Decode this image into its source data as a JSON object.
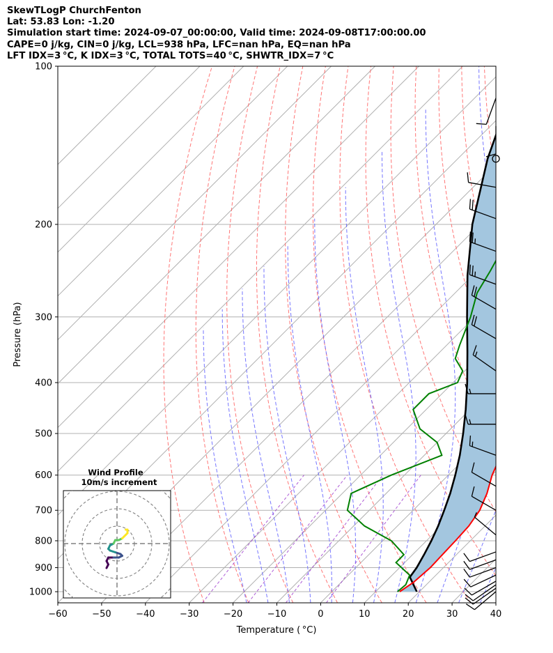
{
  "header": {
    "line1": "SkewTLogP ChurchFenton",
    "line2": "Lat: 53.83   Lon: -1.20",
    "line3": "Simulation start time: 2024-09-07_00:00:00, Valid time: 2024-09-08T17:00:00.00",
    "line4": "CAPE=0 j/kg, CIN=0 j/kg, LCL=938 hPa, LFC=nan hPa, EQ=nan hPa",
    "line5": "LFT IDX=3 °C, K IDX=3 °C, TOTAL TOTS=40 °C, SHWTR_IDX=7 °C"
  },
  "chart_data": {
    "type": "line",
    "subtype": "skew-t log-p",
    "xlabel": "Temperature ( °C)",
    "ylabel": "Pressure (hPa)",
    "xlim": [
      -60,
      40
    ],
    "ylim": [
      1050,
      100
    ],
    "yscale": "log",
    "x_ticks": [
      "−60",
      "−50",
      "−40",
      "−30",
      "−20",
      "−10",
      "0",
      "10",
      "20",
      "30",
      "40"
    ],
    "y_ticks": [
      "100",
      "200",
      "300",
      "400",
      "500",
      "600",
      "700",
      "800",
      "900",
      "1000"
    ],
    "grid": true,
    "colors": {
      "temperature": "#ff0000",
      "dewpoint": "#008000",
      "parcel": "#000000",
      "shade": "#a3c6df",
      "dry_adiabat": "#ff6666",
      "moist_adiabat": "#6666ff",
      "mixing_ratio": "#9932cc",
      "isotherm": "#b0b0b0"
    },
    "series": [
      {
        "key": "temperature",
        "points": [
          [
            1000,
            15.5
          ],
          [
            960,
            16.5
          ],
          [
            900,
            17.0
          ],
          [
            850,
            16.8
          ],
          [
            800,
            16.6
          ],
          [
            750,
            16.3
          ],
          [
            700,
            15.2
          ],
          [
            650,
            13.0
          ],
          [
            600,
            10.0
          ],
          [
            550,
            7.5
          ],
          [
            500,
            4.8
          ],
          [
            450,
            0.7
          ],
          [
            400,
            -4.3
          ],
          [
            350,
            -8.8
          ],
          [
            300,
            -14.5
          ],
          [
            260,
            -19.0
          ],
          [
            240,
            -18.5
          ],
          [
            220,
            -17.5
          ],
          [
            200,
            -18.0
          ],
          [
            180,
            -16.0
          ],
          [
            165,
            -16.0
          ],
          [
            150,
            -15.5
          ],
          [
            140,
            -17.0
          ],
          [
            125,
            -18.5
          ],
          [
            115,
            -19.0
          ],
          [
            108,
            -20.0
          ],
          [
            100,
            -21.5
          ]
        ]
      },
      {
        "key": "dewpoint",
        "points": [
          [
            1000,
            15.0
          ],
          [
            970,
            15.3
          ],
          [
            930,
            14.0
          ],
          [
            880,
            8.0
          ],
          [
            850,
            8.0
          ],
          [
            800,
            2.0
          ],
          [
            750,
            -7.5
          ],
          [
            700,
            -15.0
          ],
          [
            650,
            -18.0
          ],
          [
            600,
            -13.0
          ],
          [
            550,
            -6.0
          ],
          [
            520,
            -10.0
          ],
          [
            490,
            -17.0
          ],
          [
            450,
            -23.0
          ],
          [
            420,
            -23.0
          ],
          [
            400,
            -19.0
          ],
          [
            380,
            -20.5
          ],
          [
            360,
            -25.0
          ],
          [
            340,
            -27.0
          ],
          [
            300,
            -31.0
          ],
          [
            270,
            -35.0
          ],
          [
            245,
            -37.0
          ],
          [
            225,
            -39.0
          ],
          [
            205,
            -40.0
          ],
          [
            190,
            -44.0
          ],
          [
            180,
            -45.0
          ],
          [
            170,
            -46.0
          ],
          [
            140,
            -38.0
          ],
          [
            120,
            -34.5
          ],
          [
            110,
            -32.5
          ],
          [
            100,
            -31.0
          ]
        ]
      },
      {
        "key": "parcel",
        "points": [
          [
            1000,
            19.4
          ],
          [
            938,
            14.5
          ],
          [
            900,
            13.9
          ],
          [
            850,
            12.6
          ],
          [
            800,
            11.1
          ],
          [
            750,
            9.3
          ],
          [
            700,
            7.1
          ],
          [
            650,
            4.6
          ],
          [
            600,
            1.6
          ],
          [
            550,
            -1.9
          ],
          [
            500,
            -6.1
          ],
          [
            450,
            -11.0
          ],
          [
            400,
            -16.8
          ],
          [
            350,
            -23.7
          ],
          [
            300,
            -31.8
          ],
          [
            250,
            -41.2
          ],
          [
            200,
            -51.7
          ],
          [
            150,
            -63.2
          ],
          [
            120,
            -70.7
          ],
          [
            100,
            -76.0
          ]
        ]
      }
    ],
    "winds": [
      {
        "p": 1000,
        "spd": 10,
        "dir": 230
      },
      {
        "p": 985,
        "spd": 10,
        "dir": 235
      },
      {
        "p": 970,
        "spd": 10,
        "dir": 235
      },
      {
        "p": 955,
        "spd": 10,
        "dir": 240
      },
      {
        "p": 930,
        "spd": 10,
        "dir": 245
      },
      {
        "p": 900,
        "spd": 10,
        "dir": 250
      },
      {
        "p": 870,
        "spd": 10,
        "dir": 250
      },
      {
        "p": 840,
        "spd": 10,
        "dir": 250
      },
      {
        "p": 780,
        "spd": 5,
        "dir": 310
      },
      {
        "p": 700,
        "spd": 10,
        "dir": 300
      },
      {
        "p": 630,
        "spd": 10,
        "dir": 300
      },
      {
        "p": 550,
        "spd": 15,
        "dir": 290
      },
      {
        "p": 480,
        "spd": 15,
        "dir": 270
      },
      {
        "p": 420,
        "spd": 15,
        "dir": 270
      },
      {
        "p": 380,
        "spd": 15,
        "dir": 305
      },
      {
        "p": 330,
        "spd": 20,
        "dir": 300
      },
      {
        "p": 290,
        "spd": 20,
        "dir": 300
      },
      {
        "p": 260,
        "spd": 25,
        "dir": 290
      },
      {
        "p": 225,
        "spd": 25,
        "dir": 290
      },
      {
        "p": 195,
        "spd": 20,
        "dir": 290
      },
      {
        "p": 170,
        "spd": 10,
        "dir": 280
      },
      {
        "p": 150,
        "spd": 0,
        "dir": 0
      },
      {
        "p": 130,
        "spd": 10,
        "dir": 180
      },
      {
        "p": 115,
        "spd": 10,
        "dir": 200
      }
    ],
    "hodograph": {
      "title_line1": "Wind Profile",
      "title_line2": "10m/s increment",
      "points": [
        [
          -6,
          -14
        ],
        [
          -5,
          -12
        ],
        [
          -6,
          -10
        ],
        [
          -5,
          -8
        ],
        [
          -2,
          -8
        ],
        [
          1,
          -8
        ],
        [
          3,
          -7
        ],
        [
          2,
          -6
        ],
        [
          -1,
          -5
        ],
        [
          -4,
          -4
        ],
        [
          -5,
          -3
        ],
        [
          -4,
          -1
        ],
        [
          -2,
          0
        ],
        [
          -1,
          2
        ],
        [
          0,
          2
        ],
        [
          1,
          2
        ],
        [
          3,
          3
        ],
        [
          4,
          4
        ],
        [
          5,
          5
        ],
        [
          6,
          6
        ],
        [
          6,
          8
        ],
        [
          5,
          8
        ]
      ]
    }
  }
}
